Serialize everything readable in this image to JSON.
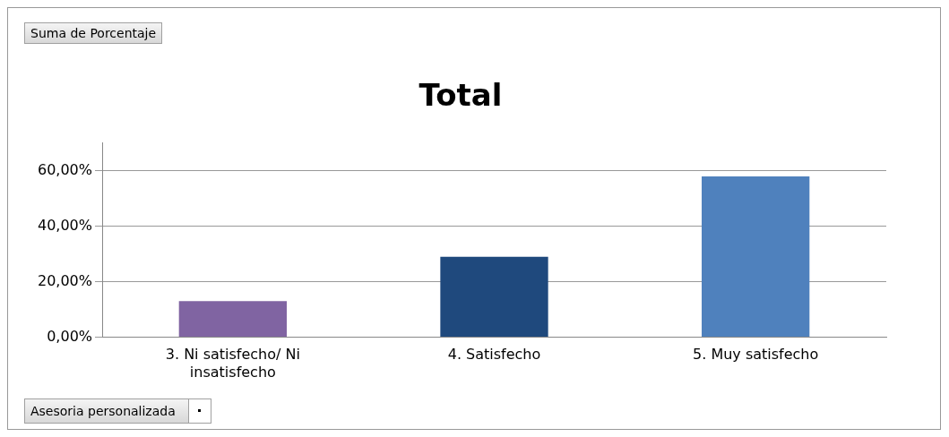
{
  "chart_data": {
    "type": "bar",
    "title": "Total",
    "categories": [
      "3. Ni satisfecho/ Ni insatisfecho",
      "4. Satisfecho",
      "5. Muy satisfecho"
    ],
    "values": [
      13,
      29,
      58
    ],
    "colors": [
      "#8064a2",
      "#1f497d",
      "#4f81bd"
    ],
    "ylim": [
      0,
      70
    ],
    "yticks": [
      {
        "value": 0,
        "label": "0,00%"
      },
      {
        "value": 20,
        "label": "20,00%"
      },
      {
        "value": 40,
        "label": "40,00%"
      },
      {
        "value": 60,
        "label": "60,00%"
      }
    ],
    "grid": "y",
    "legend": false,
    "annotations": [
      "Suma de Porcentaje",
      "Asesoria personalizada"
    ]
  }
}
